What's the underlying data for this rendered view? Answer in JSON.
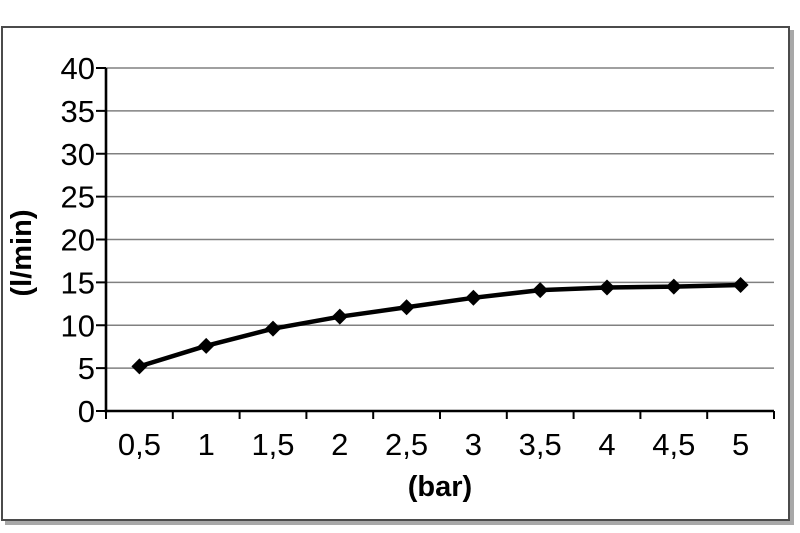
{
  "figure": {
    "background_color": "#ffffff",
    "frame_border_color": "#4b4b4b",
    "frame_shadow_color": "#a8a8a8"
  },
  "chart_data": {
    "type": "line",
    "title": "",
    "xlabel": "(bar)",
    "ylabel": "(l/min)",
    "categories": [
      "0,5",
      "1",
      "1,5",
      "2",
      "2,5",
      "3",
      "3,5",
      "4",
      "4,5",
      "5"
    ],
    "x_values": [
      0.5,
      1,
      1.5,
      2,
      2.5,
      3,
      3.5,
      4,
      4.5,
      5
    ],
    "values": [
      5.2,
      7.6,
      9.6,
      11.0,
      12.1,
      13.2,
      14.1,
      14.4,
      14.5,
      14.7
    ],
    "yticks": [
      0,
      5,
      10,
      15,
      20,
      25,
      30,
      35,
      40
    ],
    "ylim": [
      0,
      40
    ],
    "grid": true,
    "legend": "none",
    "marker": "diamond",
    "series_color": "#000000",
    "axis_color": "#000000",
    "gridline_color": "#808080",
    "text_color": "#000000"
  }
}
